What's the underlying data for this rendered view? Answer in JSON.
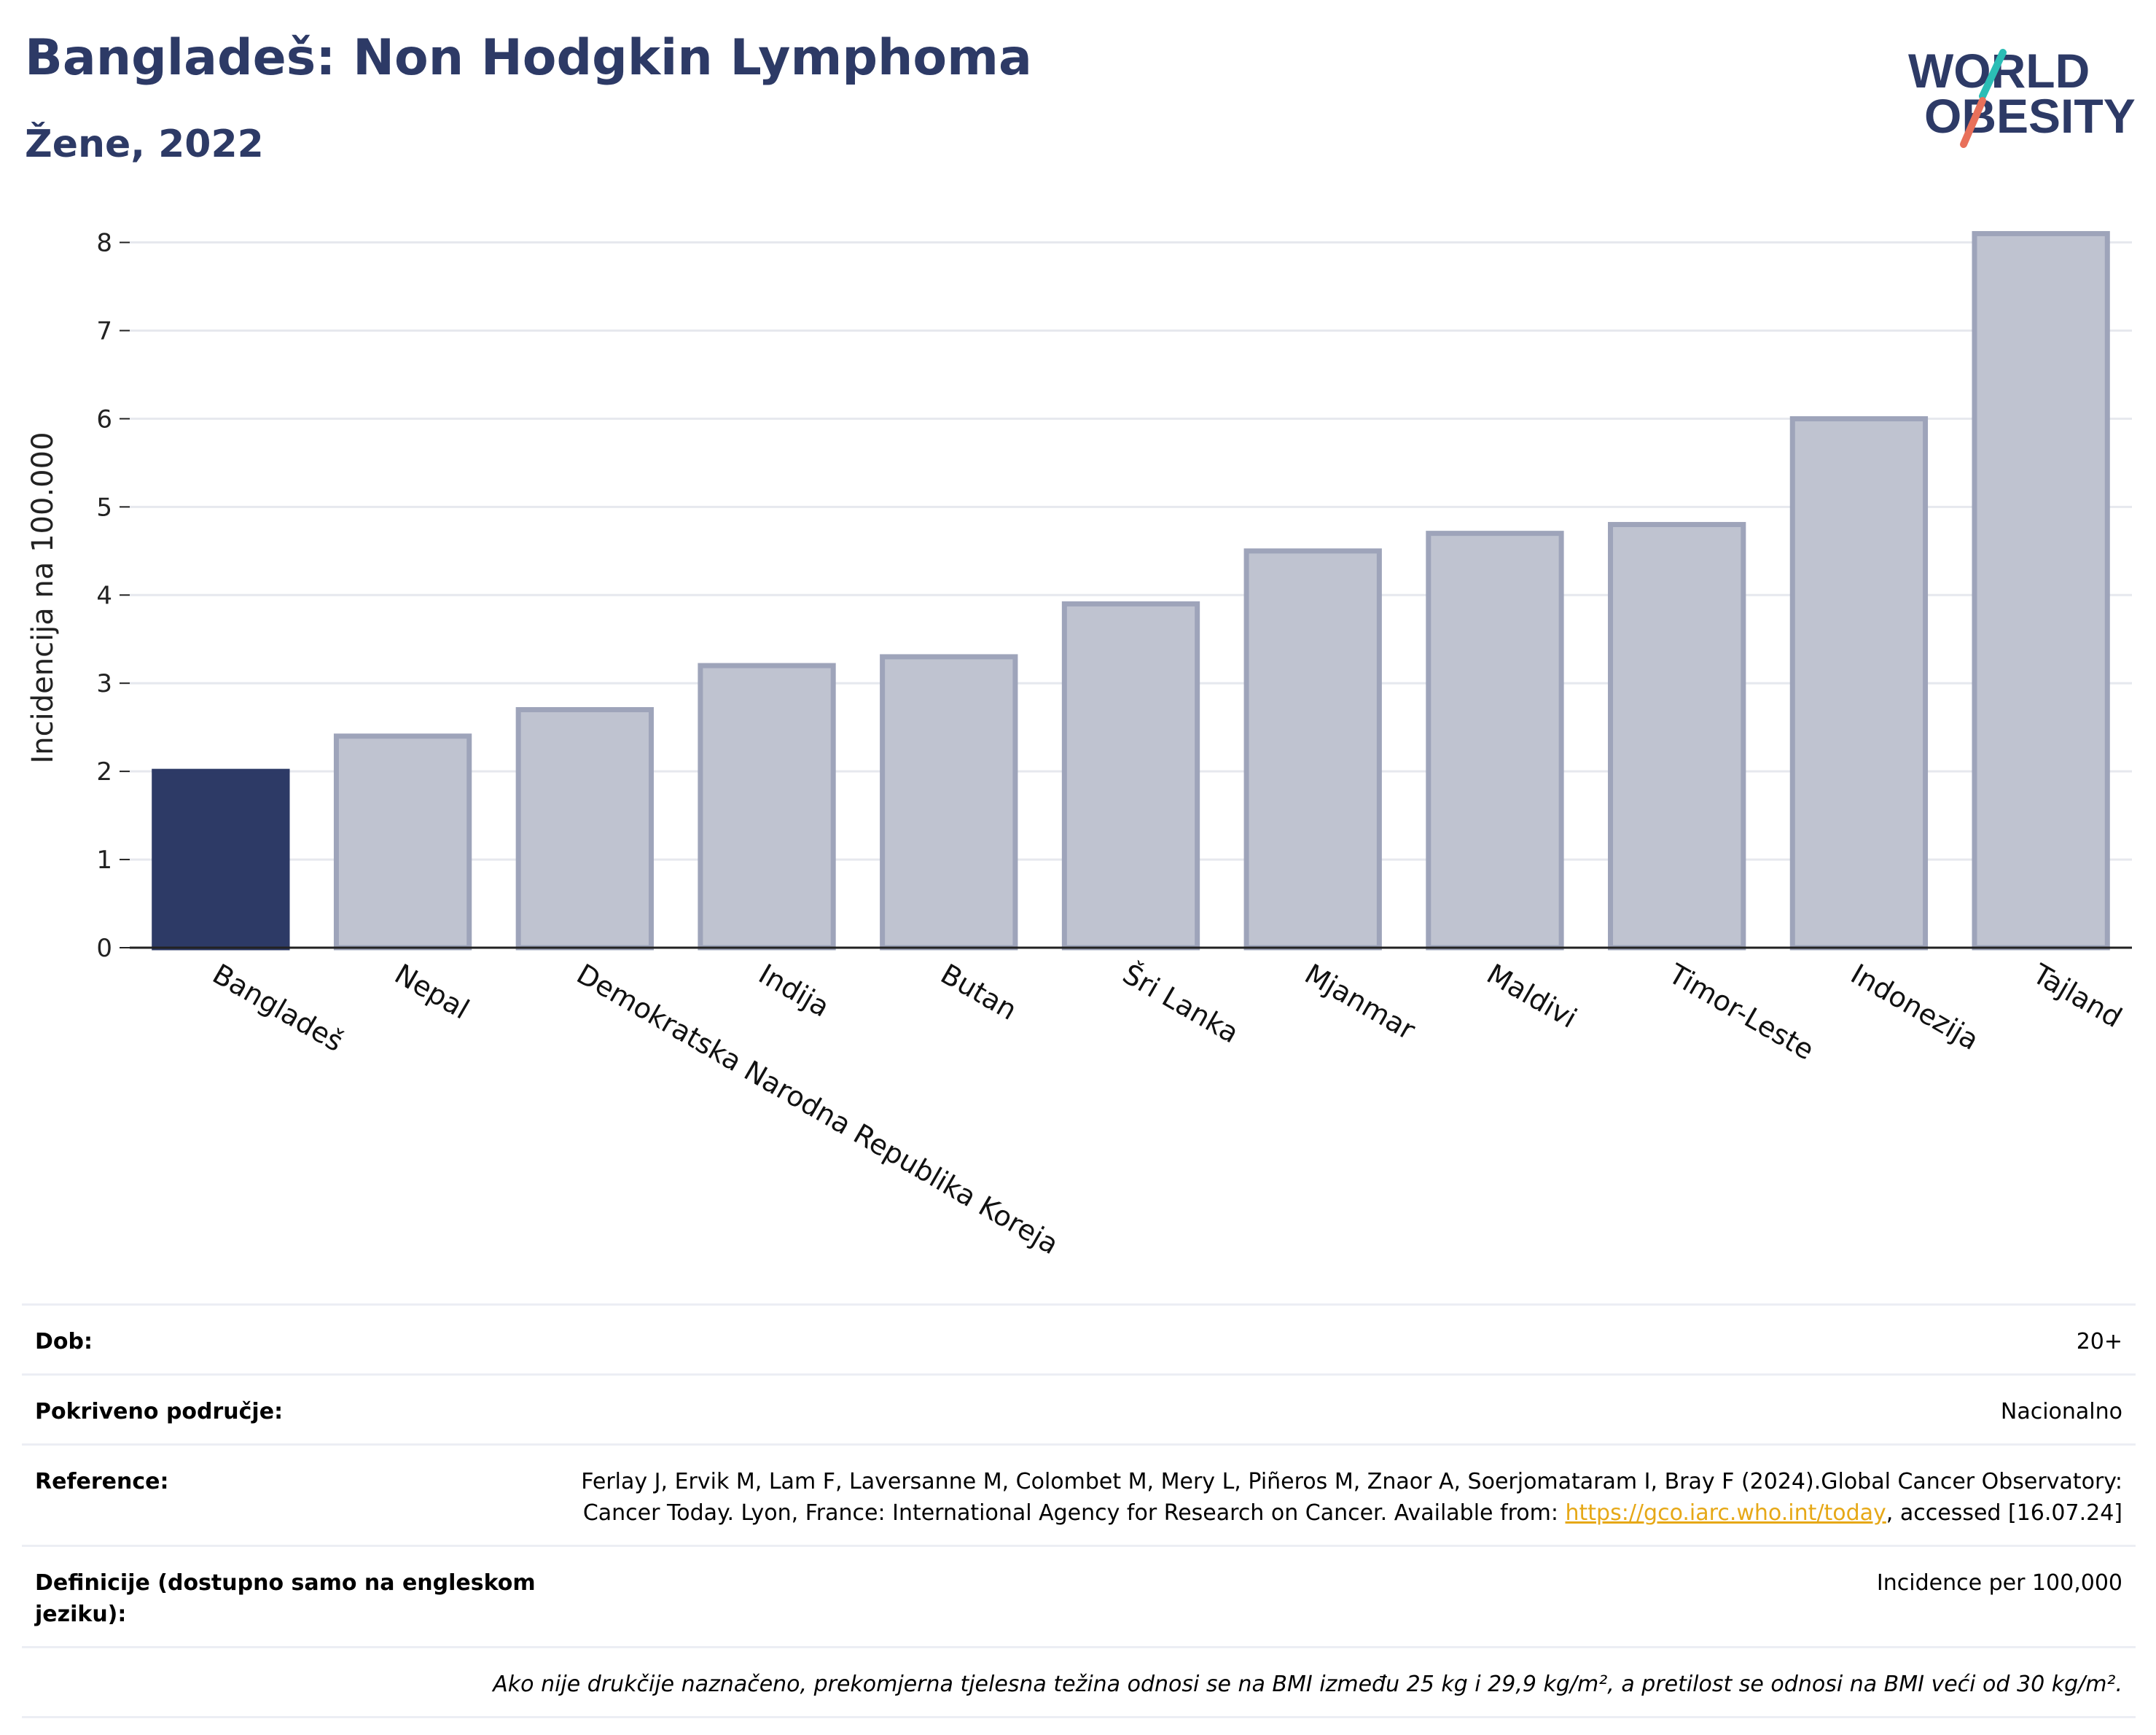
{
  "header": {
    "title": "Bangladeš: Non Hodgkin Lymphoma",
    "subtitle": "Žene, 2022"
  },
  "logo": {
    "line1": "WORLD",
    "line2": "OBESITY",
    "colors": {
      "text": "#2d3a66",
      "slash_top": "#2bbdb5",
      "slash_bottom": "#e8705a"
    }
  },
  "chart_data": {
    "type": "bar",
    "ylabel": "Incidencija na 100.000",
    "ylim": [
      0,
      8.6
    ],
    "yticks": [
      0,
      1,
      2,
      3,
      4,
      5,
      6,
      7,
      8
    ],
    "grid": true,
    "categories": [
      "Bangladeš",
      "Nepal",
      "Demokratska Narodna Republika Koreja",
      "Indija",
      "Butan",
      "Šri Lanka",
      "Mjanmar",
      "Maldivi",
      "Timor-Leste",
      "Indonezija",
      "Tajland"
    ],
    "values": [
      2.0,
      2.4,
      2.7,
      3.2,
      3.3,
      3.9,
      4.5,
      4.7,
      4.8,
      6.0,
      8.1
    ],
    "highlight_index": 0,
    "colors": {
      "highlight": "#2d3a66",
      "other_fill": "#bfc3d0",
      "other_stroke": "#9ea4ba",
      "grid": "#e6e8ee",
      "axis": "#222222"
    }
  },
  "meta": {
    "rows": [
      {
        "key": "Dob:",
        "value": "20+"
      },
      {
        "key": "Pokriveno područje:",
        "value": "Nacionalno"
      },
      {
        "key": "Reference:",
        "value_before": "Ferlay J, Ervik M, Lam F, Laversanne M, Colombet M, Mery L, Piñeros M, Znaor A, Soerjomataram I, Bray F (2024).Global Cancer Observatory: Cancer Today. Lyon, France: International Agency for Research on Cancer. Available from: ",
        "link": "https://gco.iarc.who.int/today",
        "value_after": ", accessed [16.07.24]"
      },
      {
        "key": "Definicije (dostupno samo na engleskom jeziku):",
        "value": "Incidence per 100,000"
      }
    ],
    "note": "Ako nije drukčije naznačeno, prekomjerna tjelesna težina odnosi se na BMI između 25 kg i 29,9 kg/m², a pretilost se odnosi na BMI veći od 30 kg/m²."
  }
}
